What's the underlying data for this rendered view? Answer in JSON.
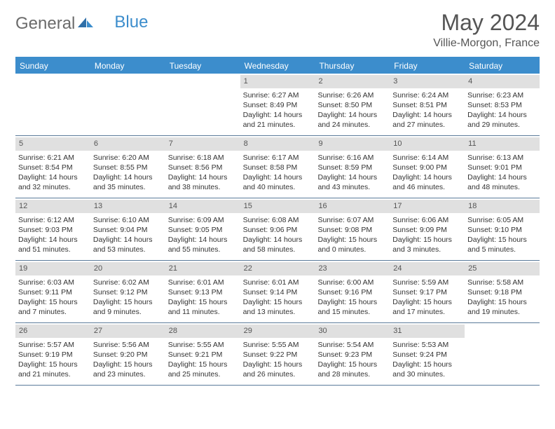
{
  "logo": {
    "text1": "General",
    "text2": "Blue"
  },
  "title": "May 2024",
  "location": "Villie-Morgon, France",
  "colors": {
    "header_bg": "#3c8dcc",
    "header_text": "#ffffff",
    "daynum_bg": "#e0e0e0",
    "row_border": "#5a7a9a",
    "body_text": "#333333",
    "title_text": "#555555"
  },
  "day_headers": [
    "Sunday",
    "Monday",
    "Tuesday",
    "Wednesday",
    "Thursday",
    "Friday",
    "Saturday"
  ],
  "weeks": [
    [
      null,
      null,
      null,
      {
        "n": "1",
        "sr": "Sunrise: 6:27 AM",
        "ss": "Sunset: 8:49 PM",
        "d1": "Daylight: 14 hours",
        "d2": "and 21 minutes."
      },
      {
        "n": "2",
        "sr": "Sunrise: 6:26 AM",
        "ss": "Sunset: 8:50 PM",
        "d1": "Daylight: 14 hours",
        "d2": "and 24 minutes."
      },
      {
        "n": "3",
        "sr": "Sunrise: 6:24 AM",
        "ss": "Sunset: 8:51 PM",
        "d1": "Daylight: 14 hours",
        "d2": "and 27 minutes."
      },
      {
        "n": "4",
        "sr": "Sunrise: 6:23 AM",
        "ss": "Sunset: 8:53 PM",
        "d1": "Daylight: 14 hours",
        "d2": "and 29 minutes."
      }
    ],
    [
      {
        "n": "5",
        "sr": "Sunrise: 6:21 AM",
        "ss": "Sunset: 8:54 PM",
        "d1": "Daylight: 14 hours",
        "d2": "and 32 minutes."
      },
      {
        "n": "6",
        "sr": "Sunrise: 6:20 AM",
        "ss": "Sunset: 8:55 PM",
        "d1": "Daylight: 14 hours",
        "d2": "and 35 minutes."
      },
      {
        "n": "7",
        "sr": "Sunrise: 6:18 AM",
        "ss": "Sunset: 8:56 PM",
        "d1": "Daylight: 14 hours",
        "d2": "and 38 minutes."
      },
      {
        "n": "8",
        "sr": "Sunrise: 6:17 AM",
        "ss": "Sunset: 8:58 PM",
        "d1": "Daylight: 14 hours",
        "d2": "and 40 minutes."
      },
      {
        "n": "9",
        "sr": "Sunrise: 6:16 AM",
        "ss": "Sunset: 8:59 PM",
        "d1": "Daylight: 14 hours",
        "d2": "and 43 minutes."
      },
      {
        "n": "10",
        "sr": "Sunrise: 6:14 AM",
        "ss": "Sunset: 9:00 PM",
        "d1": "Daylight: 14 hours",
        "d2": "and 46 minutes."
      },
      {
        "n": "11",
        "sr": "Sunrise: 6:13 AM",
        "ss": "Sunset: 9:01 PM",
        "d1": "Daylight: 14 hours",
        "d2": "and 48 minutes."
      }
    ],
    [
      {
        "n": "12",
        "sr": "Sunrise: 6:12 AM",
        "ss": "Sunset: 9:03 PM",
        "d1": "Daylight: 14 hours",
        "d2": "and 51 minutes."
      },
      {
        "n": "13",
        "sr": "Sunrise: 6:10 AM",
        "ss": "Sunset: 9:04 PM",
        "d1": "Daylight: 14 hours",
        "d2": "and 53 minutes."
      },
      {
        "n": "14",
        "sr": "Sunrise: 6:09 AM",
        "ss": "Sunset: 9:05 PM",
        "d1": "Daylight: 14 hours",
        "d2": "and 55 minutes."
      },
      {
        "n": "15",
        "sr": "Sunrise: 6:08 AM",
        "ss": "Sunset: 9:06 PM",
        "d1": "Daylight: 14 hours",
        "d2": "and 58 minutes."
      },
      {
        "n": "16",
        "sr": "Sunrise: 6:07 AM",
        "ss": "Sunset: 9:08 PM",
        "d1": "Daylight: 15 hours",
        "d2": "and 0 minutes."
      },
      {
        "n": "17",
        "sr": "Sunrise: 6:06 AM",
        "ss": "Sunset: 9:09 PM",
        "d1": "Daylight: 15 hours",
        "d2": "and 3 minutes."
      },
      {
        "n": "18",
        "sr": "Sunrise: 6:05 AM",
        "ss": "Sunset: 9:10 PM",
        "d1": "Daylight: 15 hours",
        "d2": "and 5 minutes."
      }
    ],
    [
      {
        "n": "19",
        "sr": "Sunrise: 6:03 AM",
        "ss": "Sunset: 9:11 PM",
        "d1": "Daylight: 15 hours",
        "d2": "and 7 minutes."
      },
      {
        "n": "20",
        "sr": "Sunrise: 6:02 AM",
        "ss": "Sunset: 9:12 PM",
        "d1": "Daylight: 15 hours",
        "d2": "and 9 minutes."
      },
      {
        "n": "21",
        "sr": "Sunrise: 6:01 AM",
        "ss": "Sunset: 9:13 PM",
        "d1": "Daylight: 15 hours",
        "d2": "and 11 minutes."
      },
      {
        "n": "22",
        "sr": "Sunrise: 6:01 AM",
        "ss": "Sunset: 9:14 PM",
        "d1": "Daylight: 15 hours",
        "d2": "and 13 minutes."
      },
      {
        "n": "23",
        "sr": "Sunrise: 6:00 AM",
        "ss": "Sunset: 9:16 PM",
        "d1": "Daylight: 15 hours",
        "d2": "and 15 minutes."
      },
      {
        "n": "24",
        "sr": "Sunrise: 5:59 AM",
        "ss": "Sunset: 9:17 PM",
        "d1": "Daylight: 15 hours",
        "d2": "and 17 minutes."
      },
      {
        "n": "25",
        "sr": "Sunrise: 5:58 AM",
        "ss": "Sunset: 9:18 PM",
        "d1": "Daylight: 15 hours",
        "d2": "and 19 minutes."
      }
    ],
    [
      {
        "n": "26",
        "sr": "Sunrise: 5:57 AM",
        "ss": "Sunset: 9:19 PM",
        "d1": "Daylight: 15 hours",
        "d2": "and 21 minutes."
      },
      {
        "n": "27",
        "sr": "Sunrise: 5:56 AM",
        "ss": "Sunset: 9:20 PM",
        "d1": "Daylight: 15 hours",
        "d2": "and 23 minutes."
      },
      {
        "n": "28",
        "sr": "Sunrise: 5:55 AM",
        "ss": "Sunset: 9:21 PM",
        "d1": "Daylight: 15 hours",
        "d2": "and 25 minutes."
      },
      {
        "n": "29",
        "sr": "Sunrise: 5:55 AM",
        "ss": "Sunset: 9:22 PM",
        "d1": "Daylight: 15 hours",
        "d2": "and 26 minutes."
      },
      {
        "n": "30",
        "sr": "Sunrise: 5:54 AM",
        "ss": "Sunset: 9:23 PM",
        "d1": "Daylight: 15 hours",
        "d2": "and 28 minutes."
      },
      {
        "n": "31",
        "sr": "Sunrise: 5:53 AM",
        "ss": "Sunset: 9:24 PM",
        "d1": "Daylight: 15 hours",
        "d2": "and 30 minutes."
      },
      null
    ]
  ]
}
